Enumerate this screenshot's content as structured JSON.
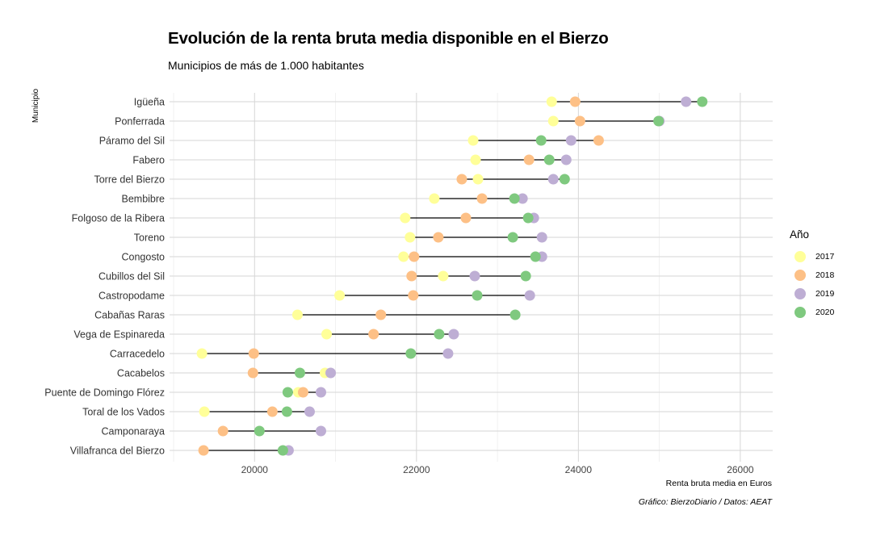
{
  "title": "Evolución de la renta bruta media disponible en el Bierzo",
  "subtitle": "Municipios de más de 1.000 habitantes",
  "caption": "Gráfico: BierzoDiario / Datos: AEAT",
  "chart_data": {
    "type": "scatter",
    "xlabel": "Renta bruta media en Euros",
    "ylabel": "Municipio",
    "xlim": [
      18950,
      26400
    ],
    "xticks": [
      20000,
      22000,
      24000,
      26000
    ],
    "grid": true,
    "legend": {
      "title": "Año",
      "position": "right"
    },
    "series": [
      {
        "name": "2017",
        "color": "#ffff99"
      },
      {
        "name": "2018",
        "color": "#fdc086"
      },
      {
        "name": "2019",
        "color": "#beaed4"
      },
      {
        "name": "2020",
        "color": "#7fc97f"
      }
    ],
    "categories": [
      "Igüeña",
      "Ponferrada",
      "Páramo del Sil",
      "Fabero",
      "Torre del Bierzo",
      "Bembibre",
      "Folgoso de la Ribera",
      "Toreno",
      "Congosto",
      "Cubillos del Sil",
      "Castropodame",
      "Cabañas Raras",
      "Vega de Espinareda",
      "Carracedelo",
      "Cacabelos",
      "Puente de Domingo Flórez",
      "Toral de los Vados",
      "Camponaraya",
      "Villafranca del Bierzo"
    ],
    "values": {
      "2017": [
        23670,
        23690,
        22700,
        22730,
        22760,
        22220,
        21860,
        21920,
        21840,
        22330,
        21050,
        20530,
        20890,
        19350,
        20870,
        20540,
        19380,
        null,
        null
      ],
      "2018": [
        23960,
        24020,
        24250,
        23390,
        22560,
        22810,
        22610,
        22270,
        21970,
        21940,
        21960,
        21560,
        21470,
        19990,
        19980,
        20600,
        20220,
        19610,
        19370
      ],
      "2019": [
        25330,
        25000,
        23910,
        23850,
        23690,
        23310,
        23450,
        23550,
        23550,
        22720,
        23400,
        null,
        22460,
        22390,
        20940,
        20820,
        20680,
        20820,
        20420
      ],
      "2020": [
        25530,
        24990,
        23540,
        23640,
        23830,
        23210,
        23380,
        23190,
        23470,
        23350,
        22750,
        23220,
        22280,
        21930,
        20560,
        20410,
        20400,
        20060,
        20350
      ]
    }
  }
}
